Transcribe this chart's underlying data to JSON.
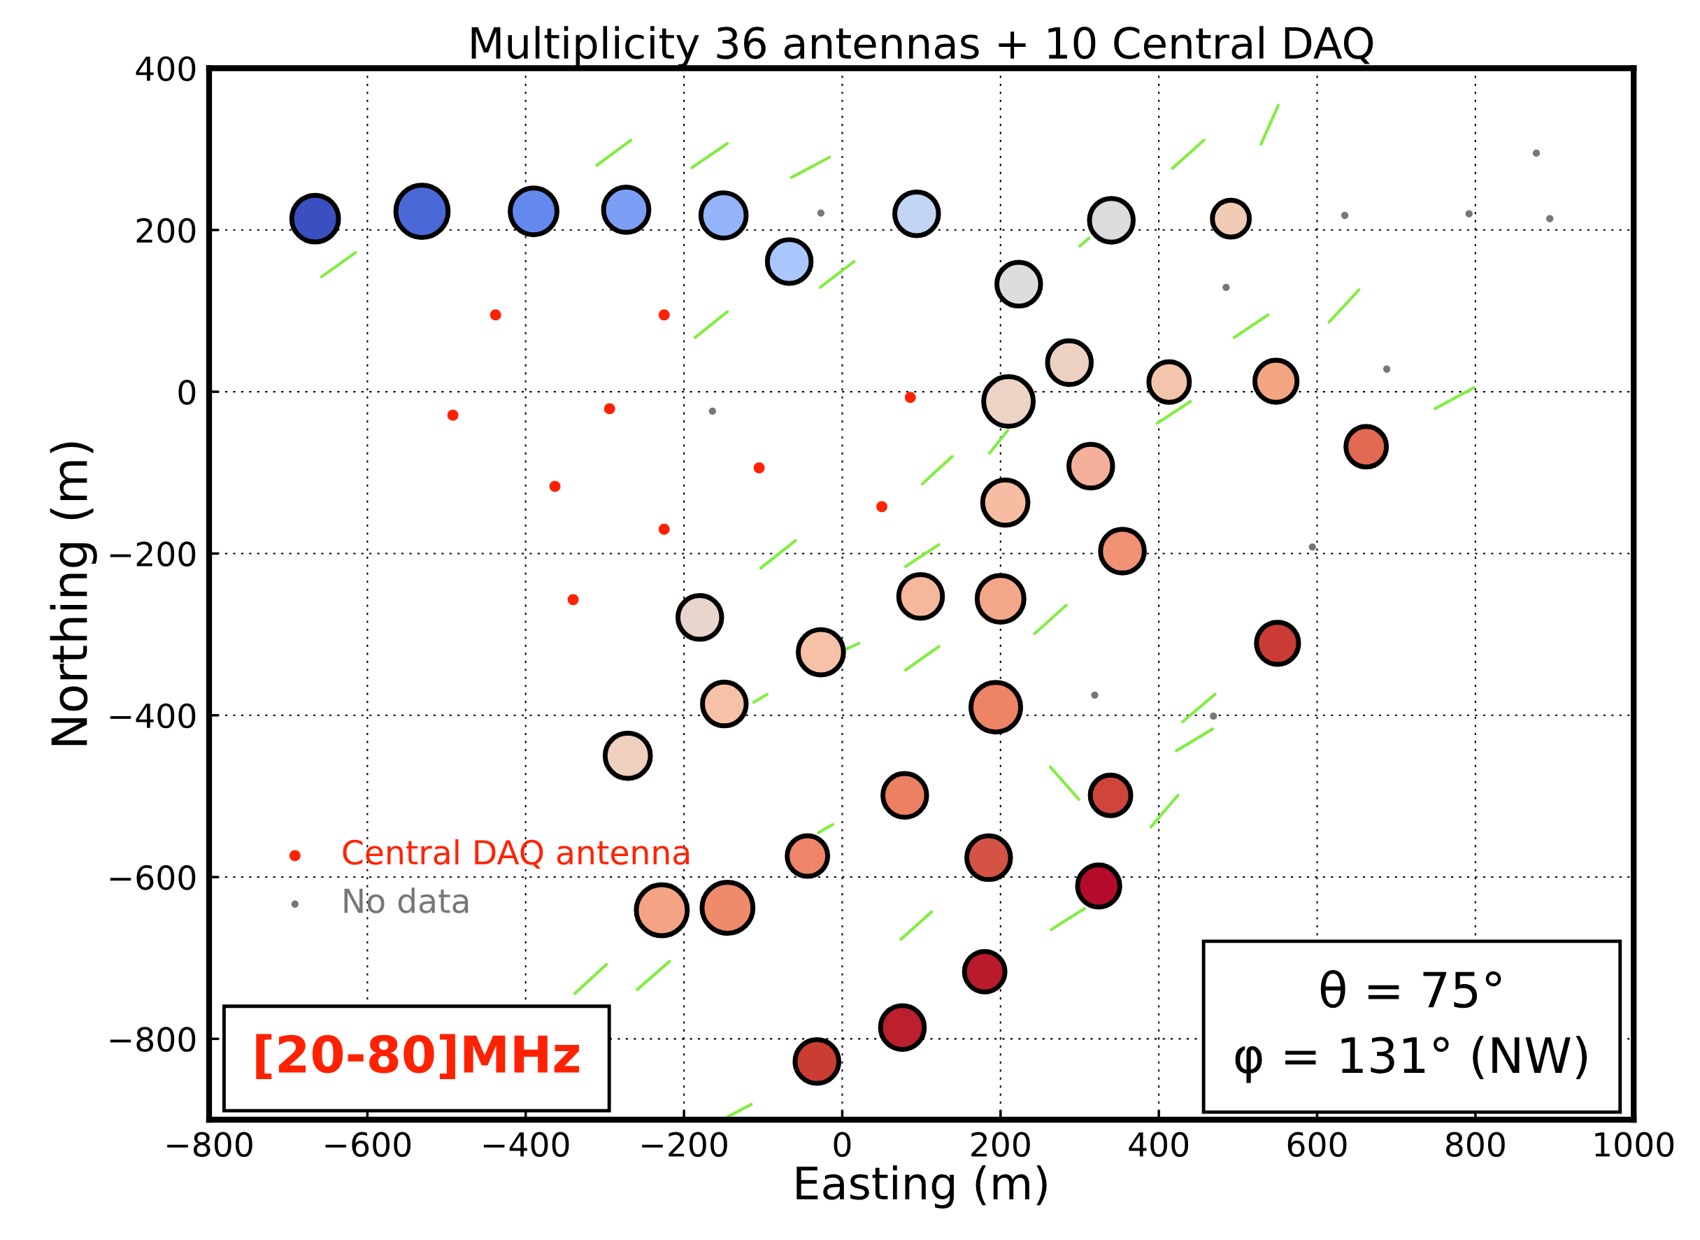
{
  "chart_data": {
    "type": "bubble",
    "title": "Multiplicity 36 antennas + 10 Central DAQ",
    "xlabel": "Easting (m)",
    "ylabel": "Northing (m)",
    "xlim": [
      -800,
      1000
    ],
    "ylim": [
      -900,
      400
    ],
    "xticks": [
      -800,
      -600,
      -400,
      -200,
      0,
      200,
      400,
      600,
      800,
      1000
    ],
    "yticks": [
      -800,
      -600,
      -400,
      -200,
      0,
      200,
      400
    ],
    "grid": true,
    "legend": "bottom left",
    "annotations": [
      "[20-80]MHz",
      "θ = 75°\nφ = 131° (NW)"
    ],
    "series": [
      {
        "type": "line",
        "color": "#80ee40",
        "x": [
          -310,
          -267
        ],
        "values": [
          280,
          311
        ]
      },
      {
        "type": "line",
        "color": "#80ee40",
        "x": [
          -190,
          -145
        ],
        "values": [
          277,
          307
        ]
      },
      {
        "type": "line",
        "color": "#80ee40",
        "x": [
          -64,
          -16
        ],
        "values": [
          265,
          290
        ]
      },
      {
        "type": "line",
        "color": "#80ee40",
        "x": [
          -658,
          -615
        ],
        "values": [
          142,
          172
        ]
      },
      {
        "type": "line",
        "color": "#80ee40",
        "x": [
          417,
          457
        ],
        "values": [
          276,
          311
        ]
      },
      {
        "type": "line",
        "color": "#80ee40",
        "x": [
          529,
          551
        ],
        "values": [
          306,
          354
        ]
      },
      {
        "type": "line",
        "color": "#80ee40",
        "x": [
          300,
          312
        ],
        "values": [
          180,
          190
        ]
      },
      {
        "type": "line",
        "color": "#80ee40",
        "x": [
          -28,
          15
        ],
        "values": [
          129,
          161
        ]
      },
      {
        "type": "line",
        "color": "#80ee40",
        "x": [
          -186,
          -145
        ],
        "values": [
          67,
          99
        ]
      },
      {
        "type": "line",
        "color": "#80ee40",
        "x": [
          495,
          538
        ],
        "values": [
          67,
          95
        ]
      },
      {
        "type": "line",
        "color": "#80ee40",
        "x": [
          615,
          653
        ],
        "values": [
          86,
          126
        ]
      },
      {
        "type": "line",
        "color": "#80ee40",
        "x": [
          398,
          440
        ],
        "values": [
          -39,
          -12
        ]
      },
      {
        "type": "line",
        "color": "#80ee40",
        "x": [
          749,
          798
        ],
        "values": [
          -21,
          5
        ]
      },
      {
        "type": "line",
        "color": "#80ee40",
        "x": [
          186,
          209
        ],
        "values": [
          -76,
          -48
        ]
      },
      {
        "type": "line",
        "color": "#80ee40",
        "x": [
          101,
          139
        ],
        "values": [
          -114,
          -80
        ]
      },
      {
        "type": "line",
        "color": "#80ee40",
        "x": [
          -103,
          -59
        ],
        "values": [
          -218,
          -184
        ]
      },
      {
        "type": "line",
        "color": "#80ee40",
        "x": [
          80,
          122
        ],
        "values": [
          -216,
          -189
        ]
      },
      {
        "type": "line",
        "color": "#80ee40",
        "x": [
          243,
          283
        ],
        "values": [
          -299,
          -264
        ]
      },
      {
        "type": "line",
        "color": "#80ee40",
        "x": [
          80,
          122
        ],
        "values": [
          -344,
          -315
        ]
      },
      {
        "type": "line",
        "color": "#80ee40",
        "x": [
          430,
          471
        ],
        "values": [
          -408,
          -374
        ]
      },
      {
        "type": "line",
        "color": "#80ee40",
        "x": [
          422,
          468
        ],
        "values": [
          -444,
          -417
        ]
      },
      {
        "type": "line",
        "color": "#80ee40",
        "x": [
          263,
          299
        ],
        "values": [
          -464,
          -504
        ]
      },
      {
        "type": "line",
        "color": "#80ee40",
        "x": [
          390,
          424
        ],
        "values": [
          -538,
          -499
        ]
      },
      {
        "type": "line",
        "color": "#80ee40",
        "x": [
          -30,
          -12
        ],
        "values": [
          -545,
          -535
        ]
      },
      {
        "type": "line",
        "color": "#80ee40",
        "x": [
          74,
          113
        ],
        "values": [
          -677,
          -643
        ]
      },
      {
        "type": "line",
        "color": "#80ee40",
        "x": [
          264,
          306
        ],
        "values": [
          -665,
          -639
        ]
      },
      {
        "type": "line",
        "color": "#80ee40",
        "x": [
          -338,
          -298
        ],
        "values": [
          -744,
          -708
        ]
      },
      {
        "type": "line",
        "color": "#80ee40",
        "x": [
          -259,
          -218
        ],
        "values": [
          -739,
          -704
        ]
      },
      {
        "type": "line",
        "color": "#80ee40",
        "x": [
          -146,
          -115
        ],
        "values": [
          -897,
          -881
        ]
      },
      {
        "type": "line",
        "color": "#80ee40",
        "x": [
          1,
          21
        ],
        "values": [
          -320,
          -311
        ]
      },
      {
        "type": "line",
        "color": "#80ee40",
        "x": [
          -112,
          -95
        ],
        "values": [
          -384,
          -374
        ]
      },
      {
        "x": [
          -666,
          -531,
          -390,
          -273,
          -150,
          -67,
          94,
          340,
          491,
          223,
          287,
          413,
          548,
          210,
          662,
          314,
          206,
          354,
          99,
          200,
          -180,
          -27,
          550,
          -149,
          194,
          -271,
          79,
          339,
          -44,
          185,
          324,
          -228,
          -145,
          180,
          76,
          -32
        ],
        "values": [
          214,
          223,
          223,
          225,
          218,
          161,
          220,
          212,
          214,
          133,
          36,
          12,
          13,
          -12,
          -68,
          -92,
          -137,
          -197,
          -253,
          -256,
          -279,
          -322,
          -311,
          -386,
          -390,
          -450,
          -499,
          -499,
          -574,
          -576,
          -611,
          -641,
          -638,
          -717,
          -786,
          -828
        ],
        "sizes": [
          0.8,
          1,
          0.8,
          0.75,
          0.75,
          0.7,
          0.7,
          0.7,
          0.5,
          0.7,
          0.7,
          0.6,
          0.65,
          0.9,
          0.6,
          0.7,
          0.75,
          0.7,
          0.7,
          0.8,
          0.7,
          0.75,
          0.65,
          0.7,
          0.9,
          0.75,
          0.7,
          0.6,
          0.6,
          0.7,
          0.65,
          0.95,
          0.95,
          0.6,
          0.7,
          0.7
        ],
        "colors": [
          "#3a4fc0",
          "#4a68d6",
          "#6389ef",
          "#7c9ff5",
          "#93b4fb",
          "#aac7fd",
          "#c2d5f4",
          "#dddcdc",
          "#f2cbb7",
          "#dcdddd",
          "#edd1c2",
          "#f5c4ac",
          "#f3a481",
          "#ecd3c5",
          "#e26952",
          "#f4b09a",
          "#f6bda2",
          "#f29274",
          "#f6b89c",
          "#f4a688",
          "#e8d6cc",
          "#f6c1a6",
          "#c93b34",
          "#f5c2a8",
          "#ee8466",
          "#efcfbe",
          "#ec8062",
          "#cf453c",
          "#ee8468",
          "#d55344",
          "#b50c2c",
          "#f4a485",
          "#ef8a6b",
          "#bb1a2c",
          "#bd1f2d",
          "#cb3c33"
        ]
      },
      {
        "type": "scatter",
        "name": "Central DAQ antenna",
        "color": "#ff2200",
        "x": [
          -438,
          -225,
          -492,
          -294,
          86,
          -363,
          -105,
          50,
          -225,
          -340
        ],
        "values": [
          95,
          95,
          -29,
          -21,
          -7,
          -117,
          -94,
          -142,
          -170,
          -257
        ]
      },
      {
        "type": "scatter",
        "name": "No data",
        "color": "#777777",
        "x": [
          -27,
          -164,
          635,
          792,
          877,
          894,
          485,
          688,
          594,
          319,
          469
        ],
        "values": [
          221,
          -24,
          218,
          220,
          295,
          214,
          129,
          28,
          -192,
          -375,
          -401
        ]
      }
    ]
  }
}
